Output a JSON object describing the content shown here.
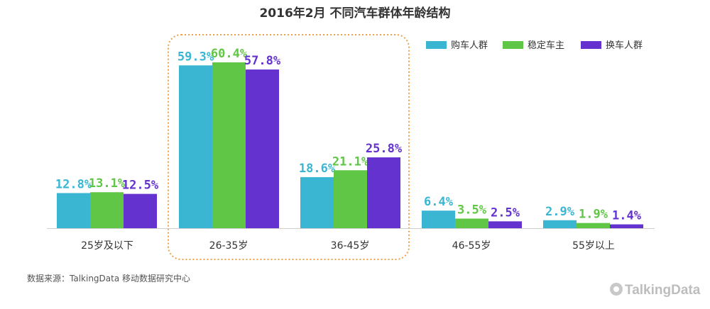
{
  "colors": {
    "buyers": "#3ab6d3",
    "stable": "#60c645",
    "switchers": "#6433cf",
    "highlight": "#f0a048",
    "axis": "#cfcfcf",
    "logo": "#bdbdbd"
  },
  "chart_data": {
    "type": "bar",
    "title": "2016年2月 不同汽车群体年龄结构",
    "categories": [
      "25岁及以下",
      "26-35岁",
      "36-45岁",
      "46-55岁",
      "55岁以上"
    ],
    "series": [
      {
        "name": "购车人群",
        "values": [
          12.8,
          59.3,
          18.6,
          6.4,
          2.9
        ],
        "labels": [
          "12.8%",
          "59.3%",
          "18.6%",
          "6.4%",
          "2.9%"
        ]
      },
      {
        "name": "稳定车主",
        "values": [
          13.1,
          60.4,
          21.1,
          3.5,
          1.9
        ],
        "labels": [
          "13.1%",
          "60.4%",
          "21.1%",
          "3.5%",
          "1.9%"
        ]
      },
      {
        "name": "换车人群",
        "values": [
          12.5,
          57.8,
          25.8,
          2.5,
          1.4
        ],
        "labels": [
          "12.5%",
          "57.8%",
          "25.8%",
          "2.5%",
          "1.4%"
        ]
      }
    ],
    "ylim": [
      0,
      60.4
    ],
    "grid": false,
    "legend_position": "top-right",
    "highlighted_categories": [
      "26-35岁",
      "36-45岁"
    ]
  },
  "source": "数据来源：TalkingData 移动数据研究中心",
  "logo": {
    "text": "TalkingData",
    "icon": "talkingdata-logo-icon"
  }
}
